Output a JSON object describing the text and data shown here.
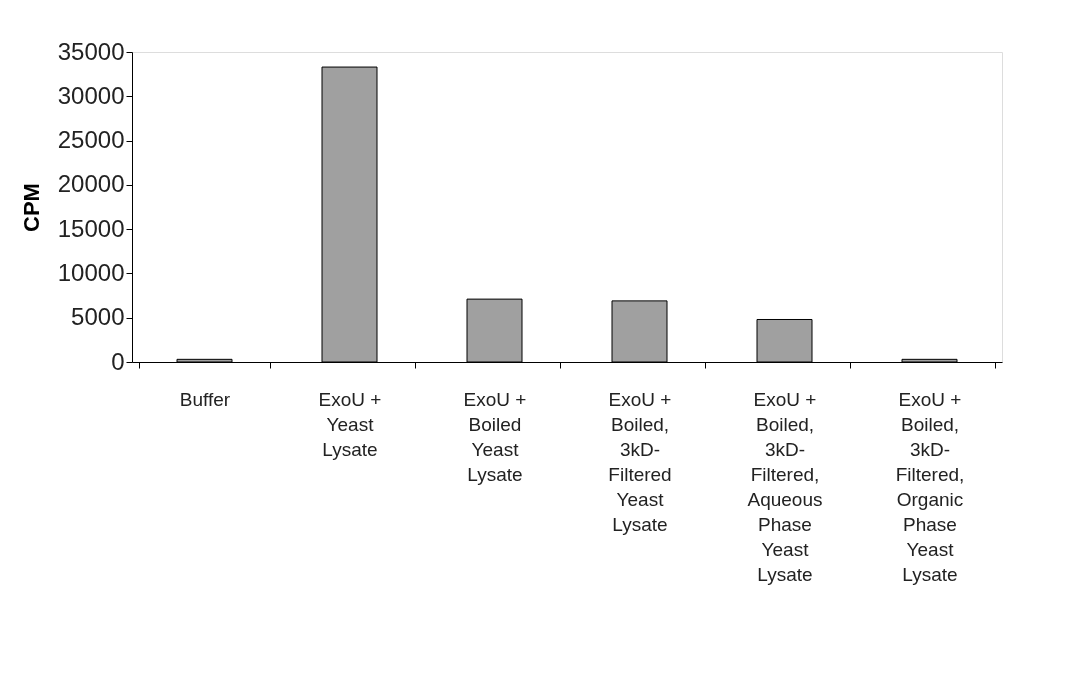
{
  "chart_data": {
    "type": "bar",
    "ylabel": "CPM",
    "categories": [
      "Buffer",
      "ExoU + Yeast Lysate",
      "ExoU + Boiled Yeast Lysate",
      "ExoU + Boiled, 3kD-Filtered Yeast Lysate",
      "ExoU + Boiled, 3kD-Filtered, Aqueous Phase Yeast Lysate",
      "ExoU + Boiled, 3kD-Filtered, Organic Phase Yeast Lysate"
    ],
    "values": [
      300,
      33300,
      7100,
      6900,
      4800,
      300
    ],
    "color": "#a0a0a0",
    "ylim": [
      0,
      35000
    ],
    "yticks": [
      0,
      5000,
      10000,
      15000,
      20000,
      25000,
      30000,
      35000
    ],
    "grid": false
  }
}
